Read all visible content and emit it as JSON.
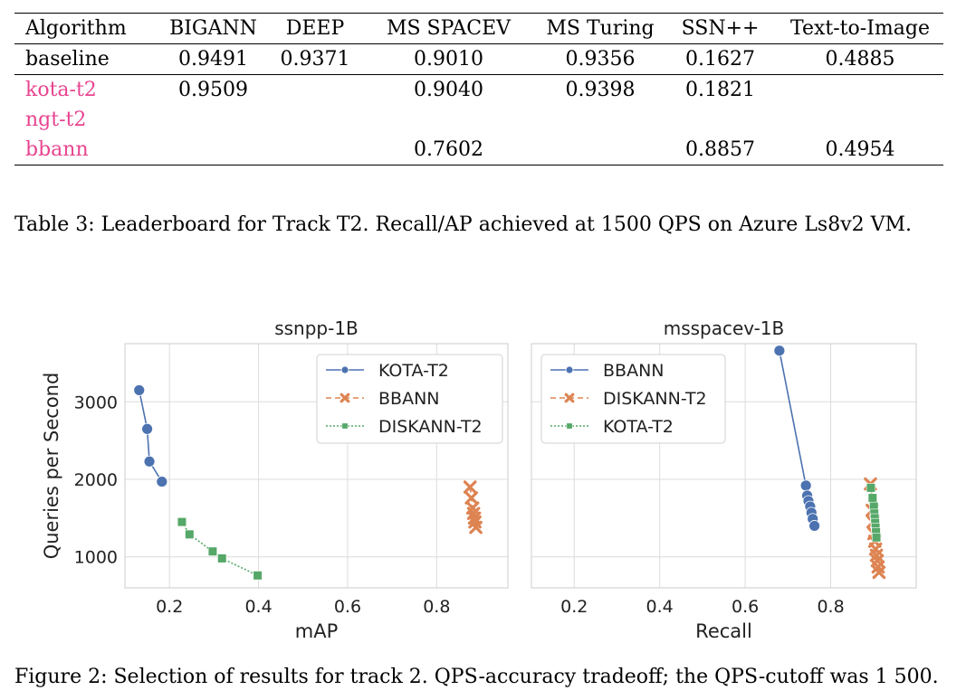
{
  "table": {
    "headers": [
      "Algorithm",
      "BIGANN",
      "DEEP",
      "MS SPACEV",
      "MS Turing",
      "SSN++",
      "Text-to-Image"
    ],
    "rows": [
      [
        "baseline",
        "0.9491",
        "0.9371",
        "0.9010",
        "0.9356",
        "0.1627",
        "0.4885"
      ],
      [
        "kota-t2",
        "0.9509",
        "",
        "0.9040",
        "0.9398",
        "0.1821",
        ""
      ],
      [
        "ngt-t2",
        "",
        "",
        "",
        "",
        "",
        ""
      ],
      [
        "bbann",
        "",
        "",
        "0.7602",
        "",
        "0.8857",
        "0.4954"
      ]
    ],
    "caption": "Table 3: Leaderboard for Track T2. Recall/AP achieved at 1500 QPS on Azure Ls8v2 VM."
  },
  "figure": {
    "caption": "Figure 2: Selection of results for track 2. QPS-accuracy tradeoff; the QPS-cutoff was 1 500."
  },
  "colors": {
    "blue": "#4c72b0",
    "orange": "#dd8452",
    "green": "#55a868",
    "pink": "#e8448f",
    "grid": "#dcdcdc"
  },
  "chart_data": [
    {
      "type": "scatter",
      "title": "ssnpp-1B",
      "xlabel": "mAP",
      "ylabel": "Queries per Second",
      "xlim": [
        0.1,
        0.96
      ],
      "ylim": [
        600,
        3750
      ],
      "xticks": [
        0.2,
        0.4,
        0.6,
        0.8
      ],
      "yticks": [
        1000,
        2000,
        3000
      ],
      "grid": true,
      "legend_position": "top-right",
      "series": [
        {
          "name": "KOTA-T2",
          "marker": "circle",
          "line": "solid",
          "color": "#4c72b0",
          "x": [
            0.132,
            0.15,
            0.155,
            0.183
          ],
          "y": [
            3150,
            2650,
            2230,
            1970
          ]
        },
        {
          "name": "BBANN",
          "marker": "x",
          "line": "dashed",
          "color": "#dd8452",
          "x": [
            0.875,
            0.878,
            0.881,
            0.883,
            0.885,
            0.886,
            0.888
          ],
          "y": [
            1900,
            1760,
            1630,
            1560,
            1500,
            1450,
            1380
          ]
        },
        {
          "name": "DISKANN-T2",
          "marker": "square",
          "line": "dotted",
          "color": "#55a868",
          "x": [
            0.228,
            0.245,
            0.297,
            0.318,
            0.398
          ],
          "y": [
            1450,
            1290,
            1070,
            980,
            760
          ]
        }
      ]
    },
    {
      "type": "scatter",
      "title": "msspacev-1B",
      "xlabel": "Recall",
      "ylabel": "",
      "xlim": [
        0.1,
        1.0
      ],
      "ylim": [
        600,
        3750
      ],
      "xticks": [
        0.2,
        0.4,
        0.6,
        0.8
      ],
      "yticks": [
        1000,
        2000,
        3000
      ],
      "grid": true,
      "legend_position": "top-left",
      "series": [
        {
          "name": "BBANN",
          "marker": "circle",
          "line": "solid",
          "color": "#4c72b0",
          "x": [
            0.68,
            0.742,
            0.745,
            0.748,
            0.752,
            0.755,
            0.758,
            0.762
          ],
          "y": [
            3660,
            1920,
            1790,
            1720,
            1650,
            1570,
            1490,
            1400
          ]
        },
        {
          "name": "DISKANN-T2",
          "marker": "x",
          "line": "dashed",
          "color": "#dd8452",
          "x": [
            0.893,
            0.897,
            0.899,
            0.901,
            0.903,
            0.905,
            0.907,
            0.909,
            0.911,
            0.913
          ],
          "y": [
            1940,
            1600,
            1450,
            1300,
            1200,
            1100,
            1020,
            950,
            870,
            800
          ]
        },
        {
          "name": "KOTA-T2",
          "marker": "square",
          "line": "dotted",
          "color": "#55a868",
          "x": [
            0.894,
            0.898,
            0.901,
            0.902,
            0.903,
            0.904,
            0.905,
            0.906,
            0.907
          ],
          "y": [
            1890,
            1760,
            1650,
            1560,
            1500,
            1440,
            1380,
            1320,
            1250
          ]
        }
      ]
    }
  ]
}
